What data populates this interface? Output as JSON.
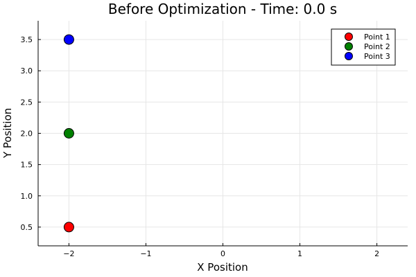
{
  "chart_data": {
    "type": "scatter",
    "title": "Before Optimization - Time: 0.0 s",
    "xlabel": "X Position",
    "ylabel": "Y Position",
    "xlim": [
      -2.4,
      2.4
    ],
    "ylim": [
      0.2,
      3.8
    ],
    "xticks": [
      -2,
      -1,
      0,
      1,
      2
    ],
    "xtick_labels": [
      "−2",
      "−1",
      "0",
      "1",
      "2"
    ],
    "yticks": [
      0.5,
      1.0,
      1.5,
      2.0,
      2.5,
      3.0,
      3.5
    ],
    "ytick_labels": [
      "0.5",
      "1.0",
      "1.5",
      "2.0",
      "2.5",
      "3.0",
      "3.5"
    ],
    "grid": true,
    "legend_position": "top-right",
    "series": [
      {
        "name": "Point 1",
        "color": "#ff0000",
        "x": [
          -2.0
        ],
        "y": [
          0.5
        ]
      },
      {
        "name": "Point 2",
        "color": "#008000",
        "x": [
          -2.0
        ],
        "y": [
          2.0
        ]
      },
      {
        "name": "Point 3",
        "color": "#0000ff",
        "x": [
          -2.0
        ],
        "y": [
          3.5
        ]
      }
    ]
  }
}
